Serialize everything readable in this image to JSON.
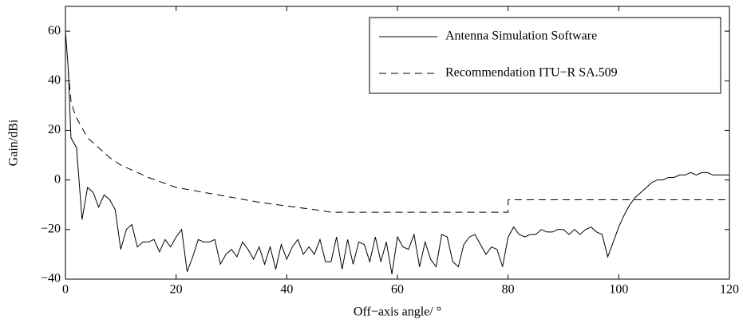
{
  "chart_data": {
    "type": "line",
    "xlabel": "Off−axis angle/ °",
    "ylabel": "Gain/dBi",
    "xlim": [
      0,
      120
    ],
    "xticks": [
      0,
      20,
      40,
      60,
      80,
      100,
      120
    ],
    "ylim": [
      -40,
      70
    ],
    "yticks": [
      {
        "value": -40,
        "label": "−40"
      },
      {
        "value": -20,
        "label": "−20"
      },
      0,
      20,
      40,
      60
    ],
    "legend": "upper right",
    "series": [
      {
        "name": "Antenna Simulation Software",
        "color": "#000000",
        "linestyle": "solid",
        "x": [
          0,
          0.5,
          1,
          2,
          3,
          4,
          5,
          6,
          7,
          8,
          9,
          10,
          11,
          12,
          13,
          14,
          15,
          16,
          17,
          18,
          19,
          20,
          21,
          22,
          23,
          24,
          25,
          26,
          27,
          28,
          29,
          30,
          31,
          32,
          33,
          34,
          35,
          36,
          37,
          38,
          39,
          40,
          41,
          42,
          43,
          44,
          45,
          46,
          47,
          48,
          49,
          50,
          51,
          52,
          53,
          54,
          55,
          56,
          57,
          58,
          59,
          60,
          61,
          62,
          63,
          64,
          65,
          66,
          67,
          68,
          69,
          70,
          71,
          72,
          73,
          74,
          75,
          76,
          77,
          78,
          79,
          80,
          81,
          82,
          83,
          84,
          85,
          86,
          87,
          88,
          89,
          90,
          91,
          92,
          93,
          94,
          95,
          96,
          97,
          98,
          99,
          100,
          101,
          102,
          103,
          104,
          105,
          106,
          107,
          108,
          109,
          110,
          111,
          112,
          113,
          114,
          115,
          116,
          117,
          118,
          119,
          120
        ],
        "values": [
          60,
          45,
          17,
          13,
          -16,
          -3,
          -5,
          -11,
          -6,
          -8,
          -12,
          -28,
          -20,
          -18,
          -27,
          -25,
          -25,
          -24,
          -29,
          -24,
          -27,
          -23,
          -20,
          -37,
          -31,
          -24,
          -25,
          -25,
          -24,
          -34,
          -30,
          -28,
          -31,
          -25,
          -28,
          -32,
          -27,
          -34,
          -27,
          -36,
          -26,
          -32,
          -27,
          -24,
          -30,
          -27,
          -30,
          -24,
          -33,
          -33,
          -23,
          -36,
          -24,
          -34,
          -25,
          -26,
          -33,
          -23,
          -33,
          -25,
          -38,
          -23,
          -27,
          -28,
          -22,
          -35,
          -25,
          -32,
          -35,
          -22,
          -23,
          -33,
          -35,
          -26,
          -23,
          -22,
          -26,
          -30,
          -27,
          -28,
          -35,
          -23,
          -19,
          -22,
          -23,
          -22,
          -22,
          -20,
          -21,
          -21,
          -20,
          -20,
          -22,
          -20,
          -22,
          -20,
          -19,
          -21,
          -22,
          -31,
          -25,
          -19,
          -14,
          -10,
          -7,
          -5,
          -3,
          -1,
          0,
          0,
          1,
          1,
          2,
          2,
          3,
          2,
          3,
          3,
          2,
          2,
          2,
          2
        ]
      },
      {
        "name": "Recommendation ITU−R SA.509",
        "color": "#000000",
        "linestyle": "dashed",
        "x": [
          0.5,
          1,
          1.5,
          2,
          3,
          4,
          5,
          6,
          8,
          10,
          12,
          15,
          20,
          25,
          30,
          35,
          40,
          45,
          48,
          60,
          70,
          80,
          80,
          90,
          100,
          110,
          120
        ],
        "values": [
          44,
          32,
          28,
          25,
          21,
          17,
          15,
          13,
          9,
          6,
          4,
          1,
          -3,
          -5,
          -7,
          -9,
          -10.5,
          -12,
          -13,
          -13,
          -13,
          -13,
          -8,
          -8,
          -8,
          -8,
          -8
        ]
      }
    ]
  }
}
